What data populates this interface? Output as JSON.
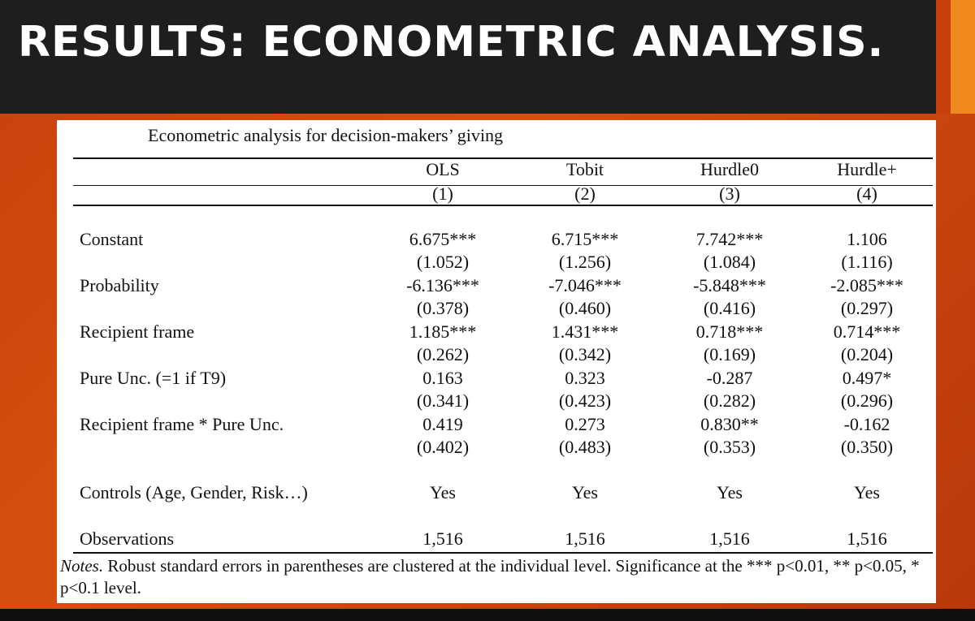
{
  "slide": {
    "title": "RESULTS: ECONOMETRIC ANALYSIS."
  },
  "table": {
    "caption": "Econometric analysis for decision-makers’ giving",
    "columns": [
      {
        "name": "OLS",
        "number": "(1)"
      },
      {
        "name": "Tobit",
        "number": "(2)"
      },
      {
        "name": "Hurdle0",
        "number": "(3)"
      },
      {
        "name": "Hurdle+",
        "number": "(4)"
      }
    ],
    "rows": [
      {
        "label": "Constant",
        "coef": [
          "6.675***",
          "6.715***",
          "7.742***",
          "1.106"
        ],
        "se": [
          "(1.052)",
          "(1.256)",
          "(1.084)",
          "(1.116)"
        ]
      },
      {
        "label": "Probability",
        "coef": [
          "-6.136***",
          "-7.046***",
          "-5.848***",
          "-2.085***"
        ],
        "se": [
          "(0.378)",
          "(0.460)",
          "(0.416)",
          "(0.297)"
        ]
      },
      {
        "label": "Recipient frame",
        "coef": [
          "1.185***",
          "1.431***",
          "0.718***",
          "0.714***"
        ],
        "se": [
          "(0.262)",
          "(0.342)",
          "(0.169)",
          "(0.204)"
        ]
      },
      {
        "label": "Pure Unc. (=1 if T9)",
        "coef": [
          "0.163",
          "0.323",
          "-0.287",
          "0.497*"
        ],
        "se": [
          "(0.341)",
          "(0.423)",
          "(0.282)",
          "(0.296)"
        ]
      },
      {
        "label": "Recipient frame * Pure Unc.",
        "coef": [
          "0.419",
          "0.273",
          "0.830**",
          "-0.162"
        ],
        "se": [
          "(0.402)",
          "(0.483)",
          "(0.353)",
          "(0.350)"
        ]
      }
    ],
    "controls": {
      "label": "Controls (Age, Gender, Risk…)",
      "values": [
        "Yes",
        "Yes",
        "Yes",
        "Yes"
      ]
    },
    "observations": {
      "label": "Observations",
      "values": [
        "1,516",
        "1,516",
        "1,516",
        "1,516"
      ]
    },
    "notes_prefix": "Notes.",
    "notes_text": " Robust standard errors in parentheses are clustered at the individual level. Significance at the *** p<0.01, ** p<0.05, * p<0.1 level."
  }
}
